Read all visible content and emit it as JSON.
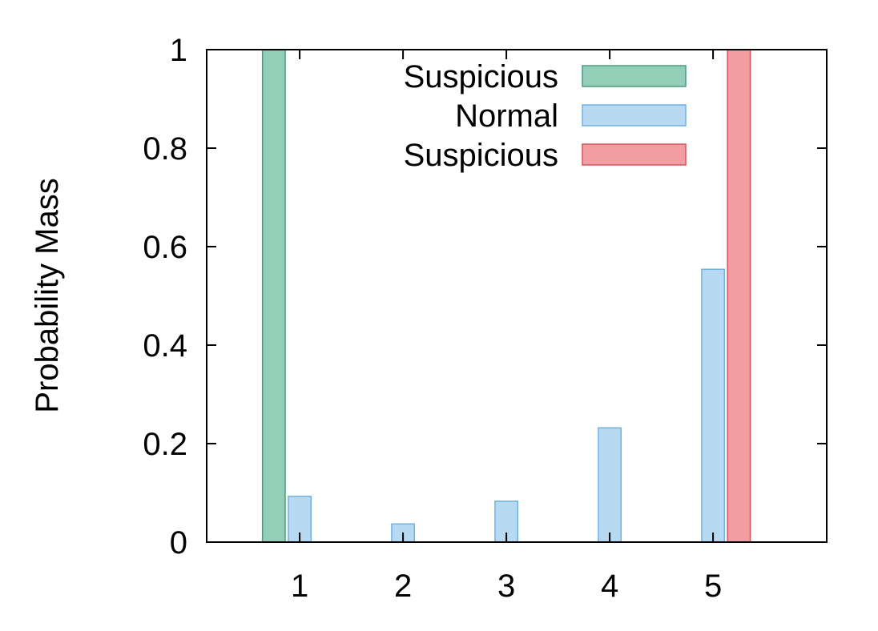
{
  "chart_data": {
    "type": "bar",
    "title": "",
    "xlabel": "",
    "ylabel": "Probability Mass",
    "categories": [
      "1",
      "2",
      "3",
      "4",
      "5"
    ],
    "ylim": [
      0,
      1
    ],
    "xlim": [
      0.1,
      6.1
    ],
    "yticks": [
      "0",
      "0.2",
      "0.4",
      "0.6",
      "0.8",
      "1"
    ],
    "grid": false,
    "legend_position": "top-right",
    "series": [
      {
        "name": "Suspicious",
        "color": "#93cfb8",
        "stroke": "#4c9c7c",
        "values": [
          1.0,
          0,
          0,
          0,
          0
        ]
      },
      {
        "name": "Normal",
        "color": "#b7d9f2",
        "stroke": "#6fb2e0",
        "values": [
          0.093,
          0.037,
          0.083,
          0.232,
          0.554
        ]
      },
      {
        "name": "Suspicious",
        "color": "#f19da2",
        "stroke": "#d9545d",
        "values": [
          0,
          0,
          0,
          0,
          1.0
        ]
      }
    ]
  }
}
